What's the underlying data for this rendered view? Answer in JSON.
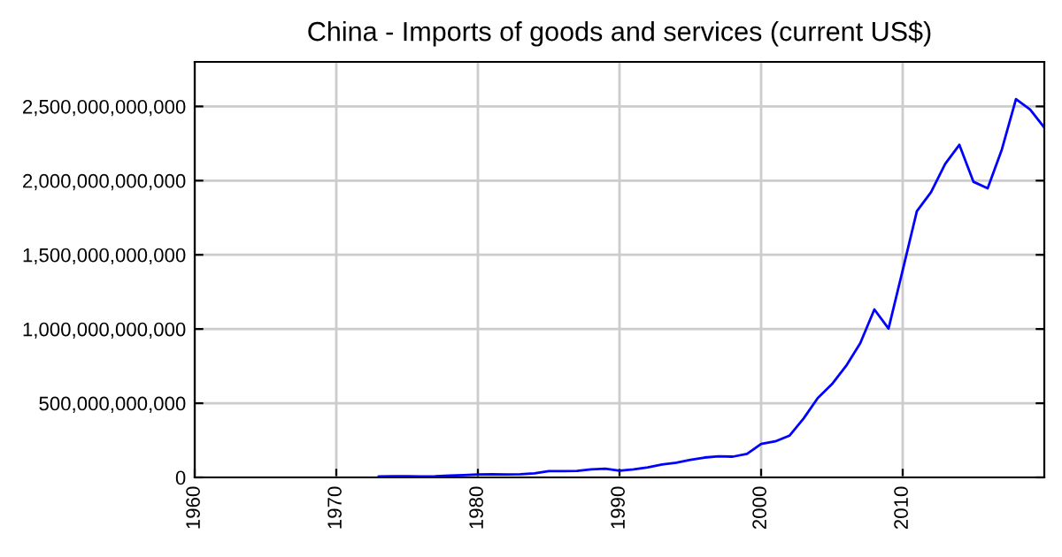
{
  "chart_data": {
    "type": "line",
    "title": "China - Imports of goods and services (current US$)",
    "x": [
      1973,
      1974,
      1975,
      1976,
      1977,
      1978,
      1979,
      1980,
      1981,
      1982,
      1983,
      1984,
      1985,
      1986,
      1987,
      1988,
      1989,
      1990,
      1991,
      1992,
      1993,
      1994,
      1995,
      1996,
      1997,
      1998,
      1999,
      2000,
      2001,
      2002,
      2003,
      2004,
      2005,
      2006,
      2007,
      2008,
      2009,
      2010,
      2011,
      2012,
      2013,
      2014,
      2015,
      2016,
      2017,
      2018,
      2019,
      2020
    ],
    "series": [
      {
        "color": "#0000ff",
        "values": [
          6000000000.0,
          8000000000.0,
          8000000000.0,
          7000000000.0,
          8000000000.0,
          12000000000.0,
          16000000000.0,
          20000000000.0,
          22000000000.0,
          20000000000.0,
          22000000000.0,
          28000000000.0,
          43000000000.0,
          43000000000.0,
          44000000000.0,
          55000000000.0,
          59000000000.0,
          46000000000.0,
          55000000000.0,
          68000000000.0,
          87000000000.0,
          99000000000.0,
          118000000000.0,
          134000000000.0,
          142000000000.0,
          140000000000.0,
          158000000000.0,
          225000000000.0,
          243000000000.0,
          281000000000.0,
          397000000000.0,
          535000000000.0,
          628000000000.0,
          751000000000.0,
          904000000000.0,
          1132000000000.0,
          1003000000000.0,
          1396000000000.0,
          1794000000000.0,
          1922000000000.0,
          2113000000000.0,
          2241000000000.0,
          1992000000000.0,
          1948000000000.0,
          2209000000000.0,
          2549000000000.0,
          2479000000000.0,
          2357000000000.0
        ]
      }
    ],
    "xlim": [
      1960,
      2020
    ],
    "xticks": [
      1960,
      1970,
      1980,
      1990,
      2000,
      2010
    ],
    "ylim": [
      0,
      2800000000000
    ],
    "yticks": [
      {
        "value": 0,
        "label": "0"
      },
      {
        "value": 500000000000,
        "label": "500,000,000,000"
      },
      {
        "value": 1000000000000,
        "label": "1,000,000,000,000"
      },
      {
        "value": 1500000000000,
        "label": "1,500,000,000,000"
      },
      {
        "value": 2000000000000,
        "label": "2,000,000,000,000"
      },
      {
        "value": 2500000000000,
        "label": "2,500,000,000,000"
      }
    ],
    "grid": true,
    "legend": false,
    "line_style": "solid",
    "marker": "none"
  }
}
